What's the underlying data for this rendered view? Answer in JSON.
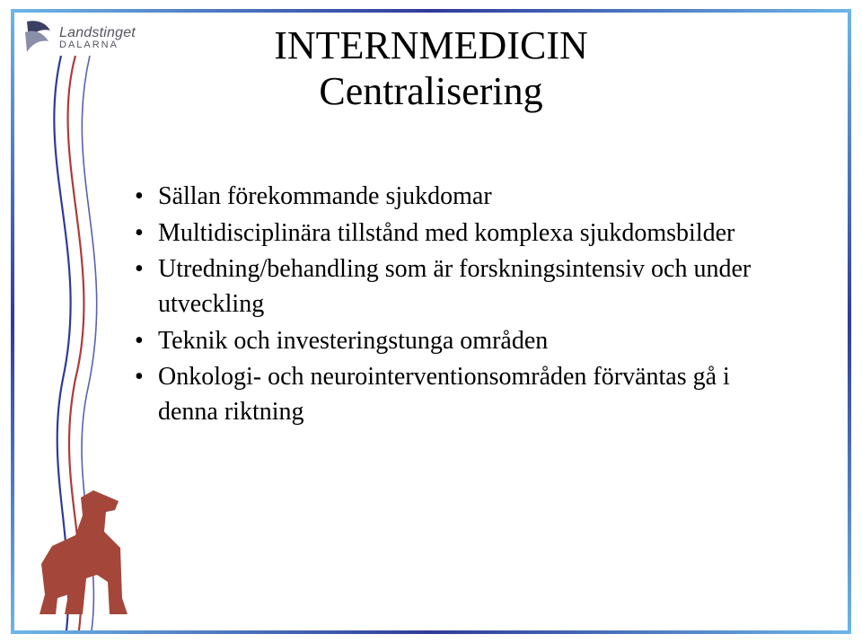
{
  "logo": {
    "main": "Landstinget",
    "sub": "DALARNA",
    "mark_color_dark": "#3b3f63",
    "mark_color_light": "#8a8ea8"
  },
  "title": {
    "line1": "INTERNMEDICIN",
    "line2": "Centralisering",
    "fontsize": 44,
    "color": "#000000"
  },
  "bullets": {
    "fontsize": 28,
    "color": "#000000",
    "items": [
      "Sällan förekommande sjukdomar",
      "Multidisciplinära tillstånd med komplexa sjukdomsbilder",
      "Utredning/behandling som är forskningsintensiv och under utveckling",
      "Teknik och investeringstunga områden",
      "Onkologi- och neurointerventionsområden förväntas gå i denna riktning"
    ]
  },
  "frame": {
    "color_start": "#6db6e8",
    "color_mid": "#2f3a9a",
    "color_end": "#6db6e8"
  },
  "wave": {
    "color_blue": "#2f3a9a",
    "color_red": "#b13a3a"
  },
  "horse": {
    "color": "#a4473a"
  },
  "background_color": "#ffffff"
}
